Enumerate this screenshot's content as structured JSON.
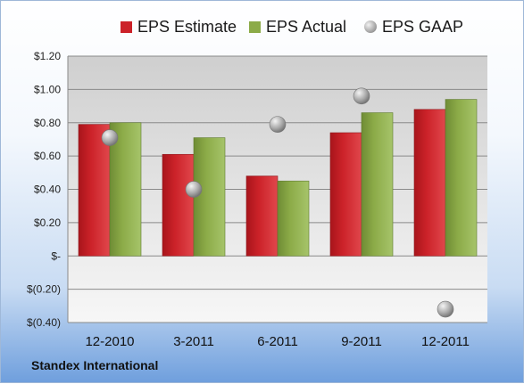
{
  "company": "Standex International",
  "colors": {
    "estimate": "#cc2229",
    "actual": "#8cab48",
    "gaap": "#a8a8a8"
  },
  "chart_data": {
    "type": "bar",
    "categories": [
      "12-2010",
      "3-2011",
      "6-2011",
      "9-2011",
      "12-2011"
    ],
    "series": [
      {
        "name": "EPS Estimate",
        "kind": "bar",
        "values": [
          0.79,
          0.61,
          0.48,
          0.74,
          0.88
        ]
      },
      {
        "name": "EPS Actual",
        "kind": "bar",
        "values": [
          0.8,
          0.71,
          0.45,
          0.86,
          0.94
        ]
      },
      {
        "name": "EPS GAAP",
        "kind": "marker",
        "values": [
          0.71,
          0.4,
          0.79,
          0.96,
          -0.32
        ]
      }
    ],
    "ylim": [
      -0.4,
      1.2
    ],
    "yticks": [
      1.2,
      1.0,
      0.8,
      0.6,
      0.4,
      0.2,
      0,
      -0.2,
      -0.4
    ],
    "ytick_labels": [
      "$1.20",
      "$1.00",
      "$0.80",
      "$0.60",
      "$0.40",
      "$0.20",
      "$-",
      "$(0.20)",
      "$(0.40)"
    ],
    "grid": true,
    "legend_position": "top"
  }
}
